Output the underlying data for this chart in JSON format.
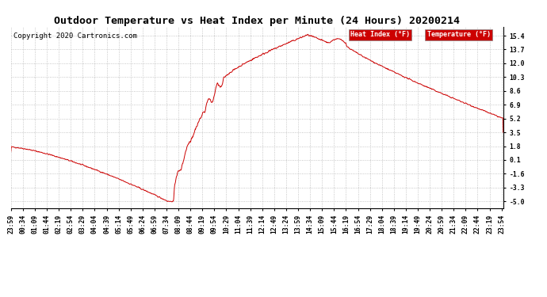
{
  "title": "Outdoor Temperature vs Heat Index per Minute (24 Hours) 20200214",
  "copyright": "Copyright 2020 Cartronics.com",
  "yticks": [
    -5.0,
    -3.3,
    -1.6,
    0.1,
    1.8,
    3.5,
    5.2,
    6.9,
    8.6,
    10.3,
    12.0,
    13.7,
    15.4
  ],
  "ylim": [
    -5.8,
    16.5
  ],
  "xlim": [
    0,
    1440
  ],
  "background_color": "#ffffff",
  "grid_color": "#b0b0b0",
  "line_color": "#cc0000",
  "title_fontsize": 9.5,
  "copyright_fontsize": 6.5,
  "tick_fontsize": 5.8,
  "legend_bg": "#cc0000",
  "legend_text_color": "#ffffff",
  "legend_fontsize": 6.0
}
